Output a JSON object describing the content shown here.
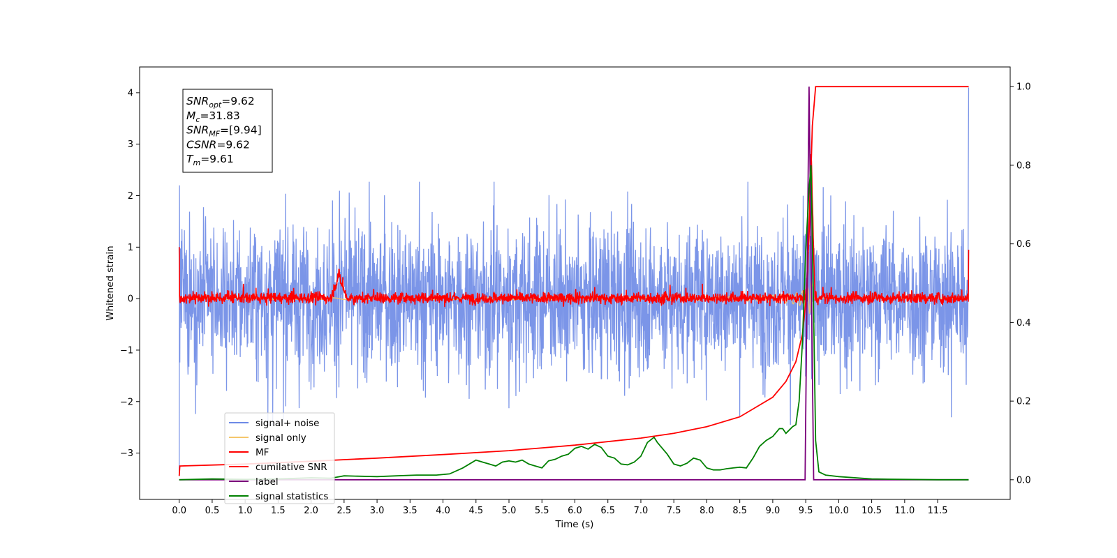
{
  "chart_data": {
    "type": "line",
    "title": "",
    "xlabel": "Time (s)",
    "ylabel": "Whitened strain",
    "ylabel_right": "",
    "xlim": [
      -0.6,
      12.6
    ],
    "ylim": [
      -3.9,
      4.5
    ],
    "ylim_right": [
      -0.05,
      1.05
    ],
    "grid": false,
    "legend_position": "lower-left",
    "x_ticks": [
      "0.0",
      "0.5",
      "1.0",
      "1.5",
      "2.0",
      "2.5",
      "3.0",
      "3.5",
      "4.0",
      "4.5",
      "5.0",
      "5.5",
      "6.0",
      "6.5",
      "7.0",
      "7.5",
      "8.0",
      "8.5",
      "9.0",
      "9.5",
      "10.0",
      "10.5",
      "11.0",
      "11.5"
    ],
    "y_ticks_left": [
      {
        "value": 4,
        "label": "4"
      },
      {
        "value": 3,
        "label": "3"
      },
      {
        "value": 2,
        "label": "2"
      },
      {
        "value": 1,
        "label": "1"
      },
      {
        "value": 0,
        "label": "0"
      },
      {
        "value": -1,
        "label": "−1"
      },
      {
        "value": -2,
        "label": "−2"
      },
      {
        "value": -3,
        "label": "−3"
      }
    ],
    "y_ticks_right": [
      {
        "value": 1.0,
        "label": "1.0"
      },
      {
        "value": 0.8,
        "label": "0.8"
      },
      {
        "value": 0.6,
        "label": "0.6"
      },
      {
        "value": 0.4,
        "label": "0.4"
      },
      {
        "value": 0.2,
        "label": "0.2"
      },
      {
        "value": 0.0,
        "label": "0.0"
      }
    ],
    "annotation": {
      "lines": [
        {
          "base": "SNR",
          "sub": "opt",
          "value": "=9.62"
        },
        {
          "base": "M",
          "sub": "c",
          "value": "=31.83"
        },
        {
          "base": "SNR",
          "sub": "MF",
          "value": "=[9.94]"
        },
        {
          "base": "CSNR",
          "sub": "",
          "value": "=9.62"
        },
        {
          "base": "T",
          "sub": "m",
          "value": "=9.61"
        }
      ]
    },
    "series": [
      {
        "name": "signal+ noise",
        "axis": "left",
        "color": "#6d8ae6",
        "kind": "noise",
        "envelope_typical": 1.35,
        "envelope_max": 2.27,
        "envelope_min": -2.45,
        "x_range": [
          0.0,
          11.97
        ]
      },
      {
        "name": "signal only",
        "axis": "left",
        "color": "#f5c66b",
        "kind": "chirp",
        "x_range": [
          0.0,
          11.97
        ],
        "peak_x": 9.58,
        "peak_abs": 2.9
      },
      {
        "name": "MF",
        "axis": "left",
        "color": "#ff0000",
        "kind": "noise",
        "envelope_typical": 0.13,
        "x_range": [
          0.0,
          11.97
        ],
        "points": [
          [
            0.0,
            1.0
          ],
          [
            0.01,
            0.05
          ],
          [
            2.42,
            0.52
          ],
          [
            9.58,
            2.95
          ],
          [
            11.97,
            0.95
          ]
        ]
      },
      {
        "name": "cumilative SNR",
        "axis": "right",
        "color": "#ff0000",
        "x": [
          0.0,
          0.01,
          1.0,
          2.0,
          3.0,
          4.0,
          5.0,
          6.0,
          7.0,
          7.5,
          8.0,
          8.5,
          9.0,
          9.2,
          9.35,
          9.45,
          9.5,
          9.55,
          9.6,
          9.65,
          11.97
        ],
        "y": [
          0.01,
          0.035,
          0.04,
          0.047,
          0.055,
          0.064,
          0.074,
          0.088,
          0.106,
          0.118,
          0.135,
          0.16,
          0.21,
          0.25,
          0.3,
          0.37,
          0.45,
          0.62,
          0.9,
          1.0,
          1.0
        ]
      },
      {
        "name": "label",
        "axis": "right",
        "color": "#7b007b",
        "x": [
          0.0,
          9.49,
          9.49,
          9.55,
          9.55,
          9.62,
          9.62,
          11.97
        ],
        "y": [
          0.0,
          0.0,
          0.0,
          1.0,
          1.0,
          0.0,
          0.0,
          0.0
        ]
      },
      {
        "name": "signal statistics",
        "axis": "right",
        "color": "#008000",
        "x": [
          0.0,
          0.5,
          1.0,
          1.5,
          2.0,
          2.3,
          2.5,
          2.7,
          3.0,
          3.3,
          3.6,
          3.9,
          4.1,
          4.3,
          4.4,
          4.5,
          4.6,
          4.7,
          4.8,
          4.9,
          5.0,
          5.1,
          5.2,
          5.3,
          5.4,
          5.5,
          5.6,
          5.7,
          5.8,
          5.9,
          6.0,
          6.1,
          6.2,
          6.3,
          6.4,
          6.5,
          6.6,
          6.7,
          6.8,
          6.9,
          7.0,
          7.1,
          7.2,
          7.25,
          7.3,
          7.4,
          7.5,
          7.6,
          7.7,
          7.8,
          7.9,
          8.0,
          8.1,
          8.2,
          8.3,
          8.4,
          8.5,
          8.6,
          8.7,
          8.8,
          8.9,
          9.0,
          9.1,
          9.15,
          9.2,
          9.3,
          9.35,
          9.4,
          9.45,
          9.5,
          9.55,
          9.58,
          9.62,
          9.65,
          9.7,
          9.8,
          10.0,
          10.5,
          11.0,
          11.5,
          11.97
        ],
        "y": [
          0.0,
          0.002,
          0.001,
          0.002,
          0.005,
          0.004,
          0.01,
          0.009,
          0.008,
          0.01,
          0.012,
          0.012,
          0.015,
          0.03,
          0.04,
          0.05,
          0.045,
          0.04,
          0.035,
          0.045,
          0.048,
          0.045,
          0.05,
          0.04,
          0.035,
          0.03,
          0.048,
          0.052,
          0.06,
          0.065,
          0.08,
          0.085,
          0.078,
          0.09,
          0.082,
          0.06,
          0.055,
          0.04,
          0.038,
          0.045,
          0.06,
          0.095,
          0.108,
          0.095,
          0.085,
          0.065,
          0.04,
          0.035,
          0.042,
          0.055,
          0.05,
          0.03,
          0.025,
          0.025,
          0.028,
          0.03,
          0.032,
          0.03,
          0.055,
          0.085,
          0.1,
          0.11,
          0.13,
          0.13,
          0.118,
          0.135,
          0.14,
          0.2,
          0.35,
          0.58,
          0.74,
          0.8,
          0.42,
          0.1,
          0.02,
          0.012,
          0.008,
          0.002,
          0.001,
          0.0,
          0.0
        ]
      }
    ]
  }
}
